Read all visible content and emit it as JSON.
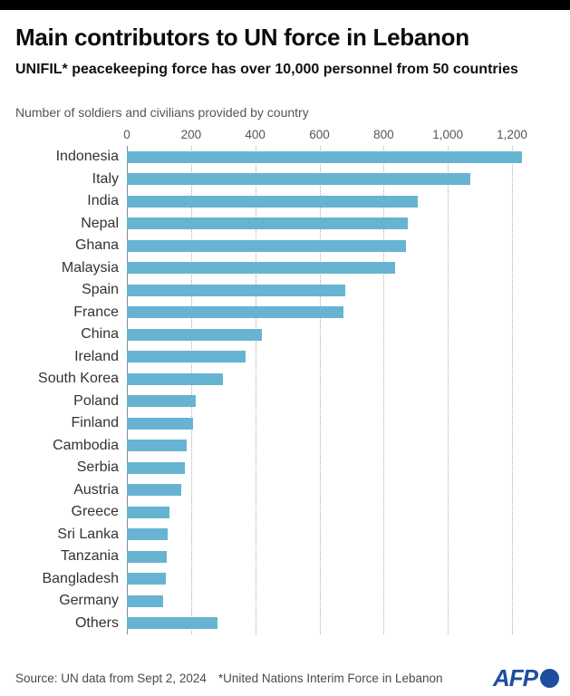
{
  "header": {
    "title": "Main contributors to UN force in Lebanon",
    "subtitle": "UNIFIL* peacekeeping force has over 10,000 personnel from 50 countries"
  },
  "chart_data": {
    "type": "bar",
    "orientation": "horizontal",
    "note": "Number of soldiers and civilians provided by country",
    "categories": [
      "Indonesia",
      "Italy",
      "India",
      "Nepal",
      "Ghana",
      "Malaysia",
      "Spain",
      "France",
      "China",
      "Ireland",
      "South Korea",
      "Poland",
      "Finland",
      "Cambodia",
      "Serbia",
      "Austria",
      "Greece",
      "Sri Lanka",
      "Tanzania",
      "Bangladesh",
      "Germany",
      "Others"
    ],
    "values": [
      1230,
      1070,
      905,
      875,
      870,
      835,
      680,
      675,
      420,
      370,
      300,
      215,
      205,
      185,
      182,
      168,
      132,
      126,
      125,
      122,
      113,
      282
    ],
    "xticks": [
      0,
      200,
      400,
      600,
      800,
      1000,
      1200
    ],
    "xtick_labels": [
      "0",
      "200",
      "400",
      "600",
      "800",
      "1,000",
      "1,200"
    ],
    "xlim": [
      0,
      1260
    ],
    "grid": "vertical-dotted",
    "legend": "none",
    "bar_color": "#67b4d2"
  },
  "footer": {
    "source": "Source: UN data from Sept 2, 2024",
    "footnote": "*United Nations Interim Force in Lebanon",
    "logo_text": "AFP",
    "logo_color": "#1f4da0"
  },
  "colors": {
    "top_bar": "#000000",
    "bar": "#67b4d2",
    "gridline": "#aeaeae",
    "axis_line": "#8a8a8a",
    "text_dark": "#0b0b0b",
    "text_gray": "#555555"
  }
}
